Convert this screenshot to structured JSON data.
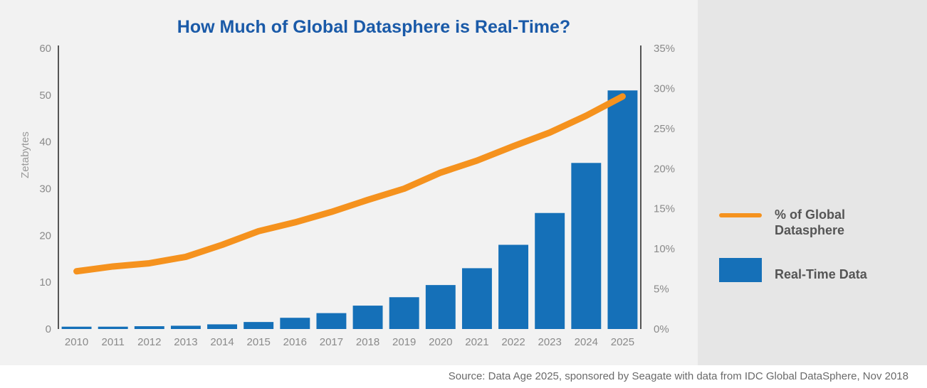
{
  "chart_data": {
    "type": "bar",
    "title": "How Much of Global Datasphere is Real-Time?",
    "ylabel": "Zetabytes",
    "y2label": "",
    "ylim": [
      0,
      60
    ],
    "y2lim": [
      0,
      35
    ],
    "yticks": [
      "0",
      "10",
      "20",
      "30",
      "40",
      "50",
      "60"
    ],
    "y2ticks": [
      "0%",
      "5%",
      "10%",
      "15%",
      "20%",
      "25%",
      "30%",
      "35%"
    ],
    "categories": [
      "2010",
      "2011",
      "2012",
      "2013",
      "2014",
      "2015",
      "2016",
      "2017",
      "2018",
      "2019",
      "2020",
      "2021",
      "2022",
      "2023",
      "2024",
      "2025"
    ],
    "series": [
      {
        "name": "Real-Time Data",
        "type": "bar",
        "axis": "left",
        "color": "#1570b8",
        "values": [
          0.5,
          0.5,
          0.6,
          0.7,
          1.0,
          1.5,
          2.4,
          3.4,
          5.0,
          6.8,
          9.4,
          13.0,
          18.0,
          24.8,
          35.5,
          51.0
        ]
      },
      {
        "name": "% of Global Datasphere",
        "type": "line",
        "axis": "right",
        "color": "#f5921e",
        "values": [
          7.2,
          7.8,
          8.2,
          9.0,
          10.5,
          12.2,
          13.3,
          14.6,
          16.1,
          17.5,
          19.5,
          21.0,
          22.8,
          24.5,
          26.6,
          29.0
        ]
      }
    ],
    "grid": false,
    "legend": "right"
  },
  "legend": {
    "line_label": "% of Global Datasphere",
    "bar_label": "Real-Time Data"
  },
  "source_note": "Source: Data Age 2025, sponsored by Seagate with data from IDC Global DataSphere, Nov 2018"
}
